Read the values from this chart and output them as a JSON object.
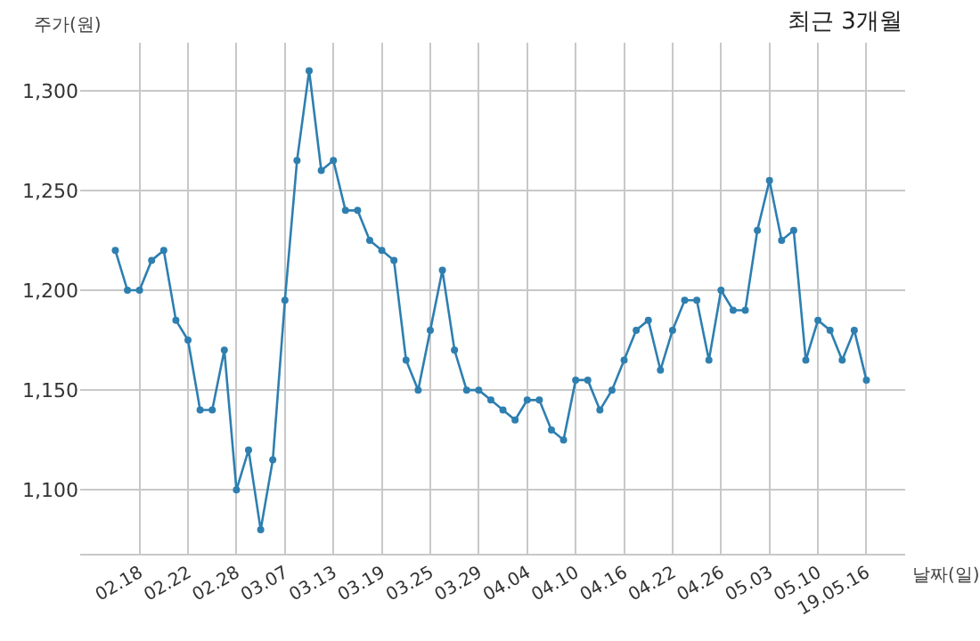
{
  "chart_data": {
    "type": "line",
    "title": "최근 3개월",
    "xlabel": "날짜(일)",
    "ylabel": "주가(원)",
    "categories": [
      null,
      null,
      "02.18",
      null,
      null,
      null,
      "02.22",
      null,
      null,
      null,
      "02.28",
      null,
      null,
      null,
      "03.07",
      null,
      null,
      null,
      "03.13",
      null,
      null,
      null,
      "03.19",
      null,
      null,
      null,
      "03.25",
      null,
      null,
      null,
      "03.29",
      null,
      null,
      null,
      "04.04",
      null,
      null,
      null,
      "04.10",
      null,
      null,
      null,
      "04.16",
      null,
      null,
      null,
      "04.22",
      null,
      null,
      null,
      "04.26",
      null,
      null,
      null,
      "05.03",
      null,
      null,
      null,
      "05.10",
      null,
      null,
      null,
      "19.05.16"
    ],
    "series": [
      {
        "color": "#2e7fb0",
        "values": [
          1220,
          1200,
          1200,
          1215,
          1220,
          1185,
          1175,
          1140,
          1140,
          1170,
          1100,
          1120,
          1080,
          1115,
          1195,
          1265,
          1310,
          1260,
          1265,
          1240,
          1240,
          1225,
          1220,
          1215,
          1165,
          1150,
          1180,
          1210,
          1170,
          1150,
          1150,
          1145,
          1140,
          1135,
          1145,
          1145,
          1130,
          1125,
          1155,
          1155,
          1140,
          1150,
          1165,
          1180,
          1185,
          1160,
          1180,
          1195,
          1195,
          1165,
          1200,
          1190,
          1190,
          1230,
          1255,
          1225,
          1230,
          1165,
          1185,
          1180,
          1165,
          1180,
          1155
        ]
      }
    ],
    "ylim": [
      1068,
      1324
    ],
    "yticks": [
      {
        "value": 1100,
        "label": "1,100"
      },
      {
        "value": 1150,
        "label": "1,150"
      },
      {
        "value": 1200,
        "label": "1,200"
      },
      {
        "value": 1250,
        "label": "1,250"
      },
      {
        "value": 1300,
        "label": "1,300"
      }
    ],
    "grid": true,
    "marker": "circle",
    "line_style": "solid",
    "legend": false
  }
}
